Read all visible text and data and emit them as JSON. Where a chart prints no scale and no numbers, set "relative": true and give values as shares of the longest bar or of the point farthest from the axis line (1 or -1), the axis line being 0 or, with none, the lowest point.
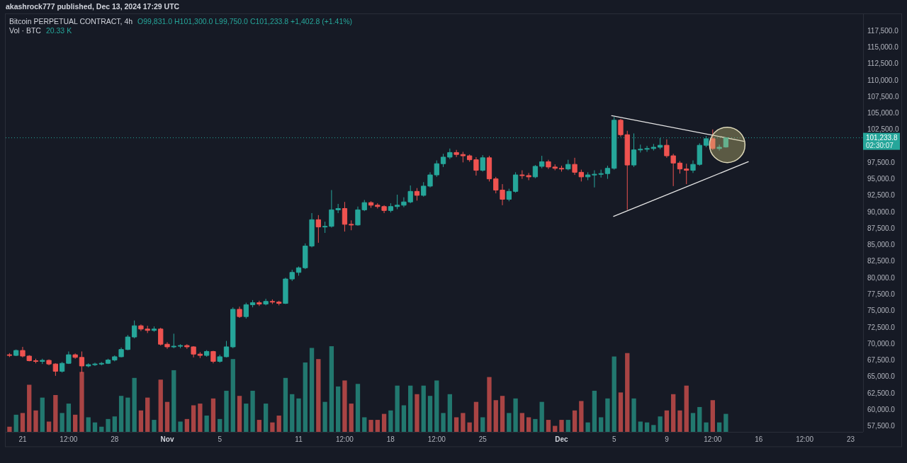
{
  "chart_data": [
    {
      "type": "candlestick",
      "title": "Bitcoin PERPETUAL CONTRACT, 4h",
      "subtitle": "O99,831.0 H101,300.0 L99,750.0 C101,233.8 +1,402.8 (+1.41%)",
      "annotations": [
        "akashrock777 published, Dec 13, 2024 17:29 UTC",
        "02:30:07"
      ],
      "x": [
        "2024-10-20T00:00",
        "2024-10-20T12:00",
        "2024-10-21T00:00",
        "2024-10-21T12:00",
        "2024-10-22T00:00",
        "2024-10-22T12:00",
        "2024-10-23T00:00",
        "2024-10-23T12:00",
        "2024-10-24T00:00",
        "2024-10-24T12:00",
        "2024-10-25T00:00",
        "2024-10-25T12:00",
        "2024-10-26T00:00",
        "2024-10-26T12:00",
        "2024-10-27T00:00",
        "2024-10-27T12:00",
        "2024-10-28T00:00",
        "2024-10-28T12:00",
        "2024-10-29T00:00",
        "2024-10-29T12:00",
        "2024-10-30T00:00",
        "2024-10-30T12:00",
        "2024-10-31T00:00",
        "2024-10-31T12:00",
        "2024-11-01T00:00",
        "2024-11-01T12:00",
        "2024-11-02T00:00",
        "2024-11-02T12:00",
        "2024-11-03T00:00",
        "2024-11-03T12:00",
        "2024-11-04T00:00",
        "2024-11-04T12:00",
        "2024-11-05T00:00",
        "2024-11-05T12:00",
        "2024-11-06T00:00",
        "2024-11-06T12:00",
        "2024-11-07T00:00",
        "2024-11-07T12:00",
        "2024-11-08T00:00",
        "2024-11-08T12:00",
        "2024-11-09T00:00",
        "2024-11-09T12:00",
        "2024-11-10T00:00",
        "2024-11-10T12:00",
        "2024-11-11T00:00",
        "2024-11-11T12:00",
        "2024-11-12T00:00",
        "2024-11-12T12:00",
        "2024-11-13T00:00",
        "2024-11-13T12:00",
        "2024-11-14T00:00",
        "2024-11-14T12:00",
        "2024-11-15T00:00",
        "2024-11-15T12:00",
        "2024-11-16T00:00",
        "2024-11-16T12:00",
        "2024-11-17T00:00",
        "2024-11-17T12:00",
        "2024-11-18T00:00",
        "2024-11-18T12:00",
        "2024-11-19T00:00",
        "2024-11-19T12:00",
        "2024-11-20T00:00",
        "2024-11-20T12:00",
        "2024-11-21T00:00",
        "2024-11-21T12:00",
        "2024-11-22T00:00",
        "2024-11-22T12:00",
        "2024-11-23T00:00",
        "2024-11-23T12:00",
        "2024-11-24T00:00",
        "2024-11-24T12:00",
        "2024-11-25T00:00",
        "2024-11-25T12:00",
        "2024-11-26T00:00",
        "2024-11-26T12:00",
        "2024-11-27T00:00",
        "2024-11-27T12:00",
        "2024-11-28T00:00",
        "2024-11-28T12:00",
        "2024-11-29T00:00",
        "2024-11-29T12:00",
        "2024-11-30T00:00",
        "2024-11-30T12:00",
        "2024-12-01T00:00",
        "2024-12-01T12:00",
        "2024-12-02T00:00",
        "2024-12-02T12:00",
        "2024-12-03T00:00",
        "2024-12-03T12:00",
        "2024-12-04T00:00",
        "2024-12-04T12:00",
        "2024-12-05T00:00",
        "2024-12-05T12:00",
        "2024-12-06T00:00",
        "2024-12-06T12:00",
        "2024-12-07T00:00",
        "2024-12-07T12:00",
        "2024-12-08T00:00",
        "2024-12-08T12:00",
        "2024-12-09T00:00",
        "2024-12-09T12:00",
        "2024-12-10T00:00",
        "2024-12-10T12:00",
        "2024-12-11T00:00",
        "2024-12-11T12:00",
        "2024-12-12T00:00",
        "2024-12-12T12:00",
        "2024-12-13T00:00",
        "2024-12-13T12:00"
      ],
      "ohlc": [
        [
          68300,
          68550,
          67950,
          68200
        ],
        [
          68200,
          69100,
          68100,
          68950
        ],
        [
          68950,
          69500,
          67900,
          68100
        ],
        [
          68100,
          68250,
          67300,
          67400
        ],
        [
          67400,
          67700,
          67000,
          67300
        ],
        [
          67300,
          67700,
          66900,
          67450
        ],
        [
          67450,
          67600,
          66700,
          66900
        ],
        [
          66900,
          67000,
          65100,
          65800
        ],
        [
          65800,
          67200,
          65600,
          67000
        ],
        [
          67000,
          68800,
          66900,
          68300
        ],
        [
          68300,
          68500,
          67700,
          67900
        ],
        [
          67900,
          68800,
          65500,
          66600
        ],
        [
          66600,
          67000,
          66400,
          66800
        ],
        [
          66800,
          67100,
          66600,
          66900
        ],
        [
          66900,
          67200,
          66700,
          67000
        ],
        [
          67000,
          67700,
          66900,
          67500
        ],
        [
          67500,
          68200,
          67300,
          68000
        ],
        [
          68000,
          69400,
          67900,
          69100
        ],
        [
          69100,
          71300,
          69000,
          71000
        ],
        [
          71000,
          73500,
          70800,
          72700
        ],
        [
          72700,
          72900,
          71900,
          72200
        ],
        [
          72200,
          72700,
          71600,
          72000
        ],
        [
          72000,
          72600,
          71800,
          72200
        ],
        [
          72200,
          72400,
          69700,
          69900
        ],
        [
          69900,
          70200,
          69200,
          69500
        ],
        [
          69500,
          71500,
          69300,
          69600
        ],
        [
          69600,
          69900,
          69300,
          69700
        ],
        [
          69700,
          69900,
          69200,
          69500
        ],
        [
          69500,
          69600,
          67900,
          68400
        ],
        [
          68400,
          68700,
          67800,
          68200
        ],
        [
          68200,
          69000,
          68000,
          68800
        ],
        [
          68800,
          68900,
          67000,
          67300
        ],
        [
          67300,
          68300,
          67100,
          68000
        ],
        [
          68000,
          70400,
          67900,
          69500
        ],
        [
          69500,
          75500,
          69300,
          75200
        ],
        [
          75200,
          75600,
          73900,
          74100
        ],
        [
          74100,
          76200,
          73800,
          75900
        ],
        [
          75900,
          76600,
          75500,
          76200
        ],
        [
          76200,
          76500,
          75700,
          76000
        ],
        [
          76000,
          76800,
          75800,
          76400
        ],
        [
          76400,
          76700,
          76000,
          76300
        ],
        [
          76300,
          76500,
          75800,
          76100
        ],
        [
          76100,
          80000,
          76000,
          79800
        ],
        [
          79800,
          81200,
          79500,
          80800
        ],
        [
          80800,
          81700,
          80300,
          81500
        ],
        [
          81500,
          85200,
          81300,
          84800
        ],
        [
          84800,
          89800,
          84600,
          88800
        ],
        [
          88800,
          89500,
          85300,
          87700
        ],
        [
          87700,
          88500,
          86800,
          87800
        ],
        [
          87800,
          93300,
          87600,
          90300
        ],
        [
          90300,
          91200,
          89800,
          90500
        ],
        [
          90500,
          91500,
          87000,
          88100
        ],
        [
          88100,
          88700,
          87200,
          88000
        ],
        [
          88000,
          90800,
          87900,
          90300
        ],
        [
          90300,
          91800,
          90100,
          91400
        ],
        [
          91400,
          91600,
          90600,
          91000
        ],
        [
          91000,
          91300,
          90500,
          90800
        ],
        [
          90800,
          91000,
          89800,
          90200
        ],
        [
          90200,
          91300,
          89900,
          90800
        ],
        [
          90800,
          92600,
          90400,
          91000
        ],
        [
          91000,
          92200,
          90700,
          91500
        ],
        [
          91500,
          94000,
          91300,
          93100
        ],
        [
          93100,
          93600,
          91700,
          92500
        ],
        [
          92500,
          94500,
          92300,
          93900
        ],
        [
          93900,
          96000,
          93700,
          95600
        ],
        [
          95600,
          97800,
          95300,
          97300
        ],
        [
          97300,
          98800,
          96800,
          98300
        ],
        [
          98300,
          99600,
          98000,
          99000
        ],
        [
          99000,
          99400,
          98300,
          98700
        ],
        [
          98700,
          99100,
          97500,
          98500
        ],
        [
          98500,
          98700,
          97600,
          97900
        ],
        [
          97900,
          98300,
          95500,
          96300
        ],
        [
          96300,
          98600,
          96100,
          98200
        ],
        [
          98200,
          98500,
          94600,
          95000
        ],
        [
          95000,
          95300,
          92800,
          93300
        ],
        [
          93300,
          94200,
          91000,
          91900
        ],
        [
          91900,
          93500,
          91600,
          93100
        ],
        [
          93100,
          96000,
          92900,
          95600
        ],
        [
          95600,
          96300,
          95000,
          95500
        ],
        [
          95500,
          95900,
          94800,
          95300
        ],
        [
          95300,
          97100,
          95100,
          96900
        ],
        [
          96900,
          98500,
          96600,
          97600
        ],
        [
          97600,
          97900,
          96500,
          96800
        ],
        [
          96800,
          97200,
          96300,
          96600
        ],
        [
          96600,
          97000,
          96100,
          96500
        ],
        [
          96500,
          97900,
          96300,
          97200
        ],
        [
          97200,
          98200,
          95600,
          96000
        ],
        [
          96000,
          96400,
          94600,
          95300
        ],
        [
          95300,
          96000,
          94800,
          95600
        ],
        [
          95600,
          96300,
          93700,
          95700
        ],
        [
          95700,
          96400,
          95200,
          95800
        ],
        [
          95800,
          97000,
          95000,
          96600
        ],
        [
          96600,
          104400,
          96400,
          103900
        ],
        [
          103900,
          104100,
          101400,
          101700
        ],
        [
          101700,
          102300,
          90300,
          97100
        ],
        [
          97100,
          101900,
          96800,
          99400
        ],
        [
          99400,
          100200,
          99000,
          99500
        ],
        [
          99500,
          100000,
          99100,
          99600
        ],
        [
          99600,
          100300,
          99300,
          99800
        ],
        [
          99800,
          101200,
          99500,
          100100
        ],
        [
          100100,
          101000,
          98200,
          98500
        ],
        [
          98500,
          98800,
          93900,
          97400
        ],
        [
          97400,
          97700,
          95800,
          96500
        ],
        [
          96500,
          97300,
          94200,
          96300
        ],
        [
          96300,
          97800,
          95900,
          97200
        ],
        [
          97200,
          100400,
          97000,
          100100
        ],
        [
          100100,
          101500,
          99800,
          101100
        ],
        [
          101100,
          102500,
          99400,
          99600
        ],
        [
          99600,
          100200,
          99300,
          99800
        ],
        [
          99831,
          101300,
          99750,
          101233.8
        ]
      ],
      "colors": [
        "#ef5350",
        "#26a69a",
        "#ef5350",
        "#ef5350",
        "#ef5350",
        "#26a69a",
        "#ef5350",
        "#ef5350",
        "#26a69a",
        "#26a69a",
        "#ef5350",
        "#ef5350",
        "#26a69a",
        "#26a69a",
        "#26a69a",
        "#26a69a",
        "#26a69a",
        "#26a69a",
        "#26a69a",
        "#26a69a",
        "#ef5350",
        "#ef5350",
        "#26a69a",
        "#ef5350",
        "#ef5350",
        "#26a69a",
        "#26a69a",
        "#ef5350",
        "#ef5350",
        "#ef5350",
        "#26a69a",
        "#ef5350",
        "#26a69a",
        "#26a69a",
        "#26a69a",
        "#ef5350",
        "#26a69a",
        "#26a69a",
        "#ef5350",
        "#26a69a",
        "#ef5350",
        "#ef5350",
        "#26a69a",
        "#26a69a",
        "#26a69a",
        "#26a69a",
        "#26a69a",
        "#ef5350",
        "#26a69a",
        "#26a69a",
        "#26a69a",
        "#ef5350",
        "#ef5350",
        "#26a69a",
        "#26a69a",
        "#ef5350",
        "#ef5350",
        "#ef5350",
        "#26a69a",
        "#26a69a",
        "#26a69a",
        "#26a69a",
        "#ef5350",
        "#26a69a",
        "#26a69a",
        "#26a69a",
        "#26a69a",
        "#26a69a",
        "#ef5350",
        "#ef5350",
        "#ef5350",
        "#ef5350",
        "#26a69a",
        "#ef5350",
        "#ef5350",
        "#ef5350",
        "#26a69a",
        "#26a69a",
        "#ef5350",
        "#ef5350",
        "#26a69a",
        "#26a69a",
        "#ef5350",
        "#ef5350",
        "#ef5350",
        "#26a69a",
        "#ef5350",
        "#ef5350",
        "#26a69a",
        "#26a69a",
        "#26a69a",
        "#26a69a",
        "#26a69a",
        "#ef5350",
        "#ef5350",
        "#26a69a",
        "#26a69a",
        "#26a69a",
        "#26a69a",
        "#26a69a",
        "#ef5350",
        "#ef5350",
        "#ef5350",
        "#ef5350",
        "#26a69a",
        "#26a69a",
        "#26a69a",
        "#ef5350",
        "#26a69a",
        "#26a69a"
      ],
      "series": [
        {
          "type": "line",
          "x": [
            "2024-12-04T19:30",
            "2024-12-14T21:00"
          ],
          "values": [
            104600,
            100700
          ],
          "color": "#e6e6e6"
        },
        {
          "type": "line",
          "x": [
            "2024-12-04T23:00",
            "2024-12-15T05:00"
          ],
          "values": [
            89300,
            97600
          ],
          "color": "#e6e6e6"
        }
      ],
      "xlim": [
        "2024-10-19T17:00",
        "2024-12-23T22:30"
      ],
      "xticks": [
        {
          "value": "2024-10-21T00:00",
          "label": "21"
        },
        {
          "value": "2024-10-24T12:00",
          "label": "12:00"
        },
        {
          "value": "2024-10-28T00:00",
          "label": "28"
        },
        {
          "value": "2024-11-01T00:00",
          "label": "Nov"
        },
        {
          "value": "2024-11-05T00:00",
          "label": "5"
        },
        {
          "value": "2024-11-11T00:00",
          "label": "11"
        },
        {
          "value": "2024-11-14T12:00",
          "label": "12:00"
        },
        {
          "value": "2024-11-18T00:00",
          "label": "18"
        },
        {
          "value": "2024-11-21T12:00",
          "label": "12:00"
        },
        {
          "value": "2024-11-25T00:00",
          "label": "25"
        },
        {
          "value": "2024-12-01T00:00",
          "label": "Dec"
        },
        {
          "value": "2024-12-05T00:00",
          "label": "5"
        },
        {
          "value": "2024-12-09T00:00",
          "label": "9"
        },
        {
          "value": "2024-12-12T12:00",
          "label": "12:00"
        },
        {
          "value": "2024-12-16T00:00",
          "label": "16"
        },
        {
          "value": "2024-12-19T12:00",
          "label": "12:00"
        },
        {
          "value": "2024-12-23T00:00",
          "label": "23"
        }
      ],
      "ylim": [
        56600,
        120000
      ],
      "yticks": [
        {
          "value": 57500,
          "label": "57,500.0"
        },
        {
          "value": 60000,
          "label": "60,000.0"
        },
        {
          "value": 62500,
          "label": "62,500.0"
        },
        {
          "value": 65000,
          "label": "65,000.0"
        },
        {
          "value": 67500,
          "label": "67,500.0"
        },
        {
          "value": 70000,
          "label": "70,000.0"
        },
        {
          "value": 72500,
          "label": "72,500.0"
        },
        {
          "value": 75000,
          "label": "75,000.0"
        },
        {
          "value": 77500,
          "label": "77,500.0"
        },
        {
          "value": 80000,
          "label": "80,000.0"
        },
        {
          "value": 82500,
          "label": "82,500.0"
        },
        {
          "value": 85000,
          "label": "85,000.0"
        },
        {
          "value": 87500,
          "label": "87,500.0"
        },
        {
          "value": 90000,
          "label": "90,000.0"
        },
        {
          "value": 92500,
          "label": "92,500.0"
        },
        {
          "value": 95000,
          "label": "95,000.0"
        },
        {
          "value": 97500,
          "label": "97,500.0"
        },
        {
          "value": 102500,
          "label": "102,500.0"
        },
        {
          "value": 105000,
          "label": "105,000.0"
        },
        {
          "value": 107500,
          "label": "107,500.0"
        },
        {
          "value": 110000,
          "label": "110,000.0"
        },
        {
          "value": 112500,
          "label": "112,500.0"
        },
        {
          "value": 115000,
          "label": "115,000.0"
        },
        {
          "value": 117500,
          "label": "117,500.0"
        }
      ],
      "ref_lines": [
        {
          "axis": "y",
          "value": 101233.8,
          "label": "101,233.8",
          "color": "#26a69a",
          "line_style": "dotted"
        }
      ]
    },
    {
      "type": "bar",
      "title": "Vol · BTC",
      "annotations": [
        "20.33 K"
      ],
      "relative": true,
      "tick_labels": false,
      "x": [
        "2024-10-20T00:00",
        "2024-10-20T12:00",
        "2024-10-21T00:00",
        "2024-10-21T12:00",
        "2024-10-22T00:00",
        "2024-10-22T12:00",
        "2024-10-23T00:00",
        "2024-10-23T12:00",
        "2024-10-24T00:00",
        "2024-10-24T12:00",
        "2024-10-25T00:00",
        "2024-10-25T12:00",
        "2024-10-26T00:00",
        "2024-10-26T12:00",
        "2024-10-27T00:00",
        "2024-10-27T12:00",
        "2024-10-28T00:00",
        "2024-10-28T12:00",
        "2024-10-29T00:00",
        "2024-10-29T12:00",
        "2024-10-30T00:00",
        "2024-10-30T12:00",
        "2024-10-31T00:00",
        "2024-10-31T12:00",
        "2024-11-01T00:00",
        "2024-11-01T12:00",
        "2024-11-02T00:00",
        "2024-11-02T12:00",
        "2024-11-03T00:00",
        "2024-11-03T12:00",
        "2024-11-04T00:00",
        "2024-11-04T12:00",
        "2024-11-05T00:00",
        "2024-11-05T12:00",
        "2024-11-06T00:00",
        "2024-11-06T12:00",
        "2024-11-07T00:00",
        "2024-11-07T12:00",
        "2024-11-08T00:00",
        "2024-11-08T12:00",
        "2024-11-09T00:00",
        "2024-11-09T12:00",
        "2024-11-10T00:00",
        "2024-11-10T12:00",
        "2024-11-11T00:00",
        "2024-11-11T12:00",
        "2024-11-12T00:00",
        "2024-11-12T12:00",
        "2024-11-13T00:00",
        "2024-11-13T12:00",
        "2024-11-14T00:00",
        "2024-11-14T12:00",
        "2024-11-15T00:00",
        "2024-11-15T12:00",
        "2024-11-16T00:00",
        "2024-11-16T12:00",
        "2024-11-17T00:00",
        "2024-11-17T12:00",
        "2024-11-18T00:00",
        "2024-11-18T12:00",
        "2024-11-19T00:00",
        "2024-11-19T12:00",
        "2024-11-20T00:00",
        "2024-11-20T12:00",
        "2024-11-21T00:00",
        "2024-11-21T12:00",
        "2024-11-22T00:00",
        "2024-11-22T12:00",
        "2024-11-23T00:00",
        "2024-11-23T12:00",
        "2024-11-24T00:00",
        "2024-11-24T12:00",
        "2024-11-25T00:00",
        "2024-11-25T12:00",
        "2024-11-26T00:00",
        "2024-11-26T12:00",
        "2024-11-27T00:00",
        "2024-11-27T12:00",
        "2024-11-28T00:00",
        "2024-11-28T12:00",
        "2024-11-29T00:00",
        "2024-11-29T12:00",
        "2024-11-30T00:00",
        "2024-11-30T12:00",
        "2024-12-01T00:00",
        "2024-12-01T12:00",
        "2024-12-02T00:00",
        "2024-12-02T12:00",
        "2024-12-03T00:00",
        "2024-12-03T12:00",
        "2024-12-04T00:00",
        "2024-12-04T12:00",
        "2024-12-05T00:00",
        "2024-12-05T12:00",
        "2024-12-06T00:00",
        "2024-12-06T12:00",
        "2024-12-07T00:00",
        "2024-12-07T12:00",
        "2024-12-08T00:00",
        "2024-12-08T12:00",
        "2024-12-09T00:00",
        "2024-12-09T12:00",
        "2024-12-10T00:00",
        "2024-12-10T12:00",
        "2024-12-11T00:00",
        "2024-12-11T12:00",
        "2024-12-12T00:00",
        "2024-12-12T12:00",
        "2024-12-13T00:00",
        "2024-12-13T12:00"
      ],
      "values": [
        0.06,
        0.2,
        0.22,
        0.55,
        0.25,
        0.4,
        0.12,
        0.43,
        0.22,
        0.33,
        0.2,
        0.7,
        0.17,
        0.11,
        0.06,
        0.15,
        0.18,
        0.42,
        0.4,
        0.63,
        0.25,
        0.4,
        0.14,
        0.61,
        0.35,
        0.72,
        0.12,
        0.15,
        0.31,
        0.33,
        0.19,
        0.39,
        0.15,
        0.48,
        0.85,
        0.42,
        0.33,
        0.48,
        0.14,
        0.33,
        0.11,
        0.19,
        0.63,
        0.44,
        0.39,
        0.81,
        0.98,
        0.85,
        0.35,
        1,
        0.53,
        0.6,
        0.33,
        0.56,
        0.17,
        0.14,
        0.14,
        0.21,
        0.25,
        0.54,
        0.31,
        0.54,
        0.44,
        0.54,
        0.42,
        0.6,
        0.22,
        0.44,
        0.17,
        0.22,
        0.11,
        0.35,
        0.17,
        0.64,
        0.37,
        0.42,
        0.22,
        0.39,
        0.22,
        0.17,
        0.15,
        0.35,
        0.14,
        0.07,
        0.14,
        0.14,
        0.25,
        0.36,
        0.11,
        0.48,
        0.17,
        0.39,
        0.88,
        0.46,
        0.92,
        0.39,
        0.12,
        0.11,
        0.08,
        0.18,
        0.25,
        0.44,
        0.25,
        0.54,
        0.22,
        0.29,
        0.11,
        0.37,
        0.11,
        0.21
      ],
      "colors": [
        "#a94444",
        "#22786f",
        "#a94444",
        "#a94444",
        "#a94444",
        "#22786f",
        "#a94444",
        "#a94444",
        "#22786f",
        "#22786f",
        "#a94444",
        "#a94444",
        "#22786f",
        "#22786f",
        "#22786f",
        "#22786f",
        "#22786f",
        "#22786f",
        "#22786f",
        "#22786f",
        "#a94444",
        "#a94444",
        "#22786f",
        "#a94444",
        "#a94444",
        "#22786f",
        "#22786f",
        "#a94444",
        "#a94444",
        "#a94444",
        "#22786f",
        "#a94444",
        "#22786f",
        "#22786f",
        "#22786f",
        "#a94444",
        "#22786f",
        "#22786f",
        "#a94444",
        "#22786f",
        "#a94444",
        "#a94444",
        "#22786f",
        "#22786f",
        "#22786f",
        "#22786f",
        "#22786f",
        "#a94444",
        "#22786f",
        "#22786f",
        "#22786f",
        "#a94444",
        "#a94444",
        "#22786f",
        "#22786f",
        "#a94444",
        "#a94444",
        "#a94444",
        "#22786f",
        "#22786f",
        "#22786f",
        "#22786f",
        "#a94444",
        "#22786f",
        "#22786f",
        "#22786f",
        "#22786f",
        "#22786f",
        "#a94444",
        "#a94444",
        "#a94444",
        "#a94444",
        "#22786f",
        "#a94444",
        "#a94444",
        "#a94444",
        "#22786f",
        "#22786f",
        "#a94444",
        "#a94444",
        "#22786f",
        "#22786f",
        "#a94444",
        "#a94444",
        "#a94444",
        "#22786f",
        "#a94444",
        "#a94444",
        "#22786f",
        "#22786f",
        "#22786f",
        "#22786f",
        "#22786f",
        "#a94444",
        "#a94444",
        "#22786f",
        "#22786f",
        "#22786f",
        "#22786f",
        "#22786f",
        "#a94444",
        "#a94444",
        "#a94444",
        "#a94444",
        "#22786f",
        "#22786f",
        "#22786f",
        "#a94444",
        "#22786f",
        "#22786f"
      ],
      "xlim": [
        "2024-10-19T17:00",
        "2024-12-23T22:30"
      ]
    }
  ]
}
